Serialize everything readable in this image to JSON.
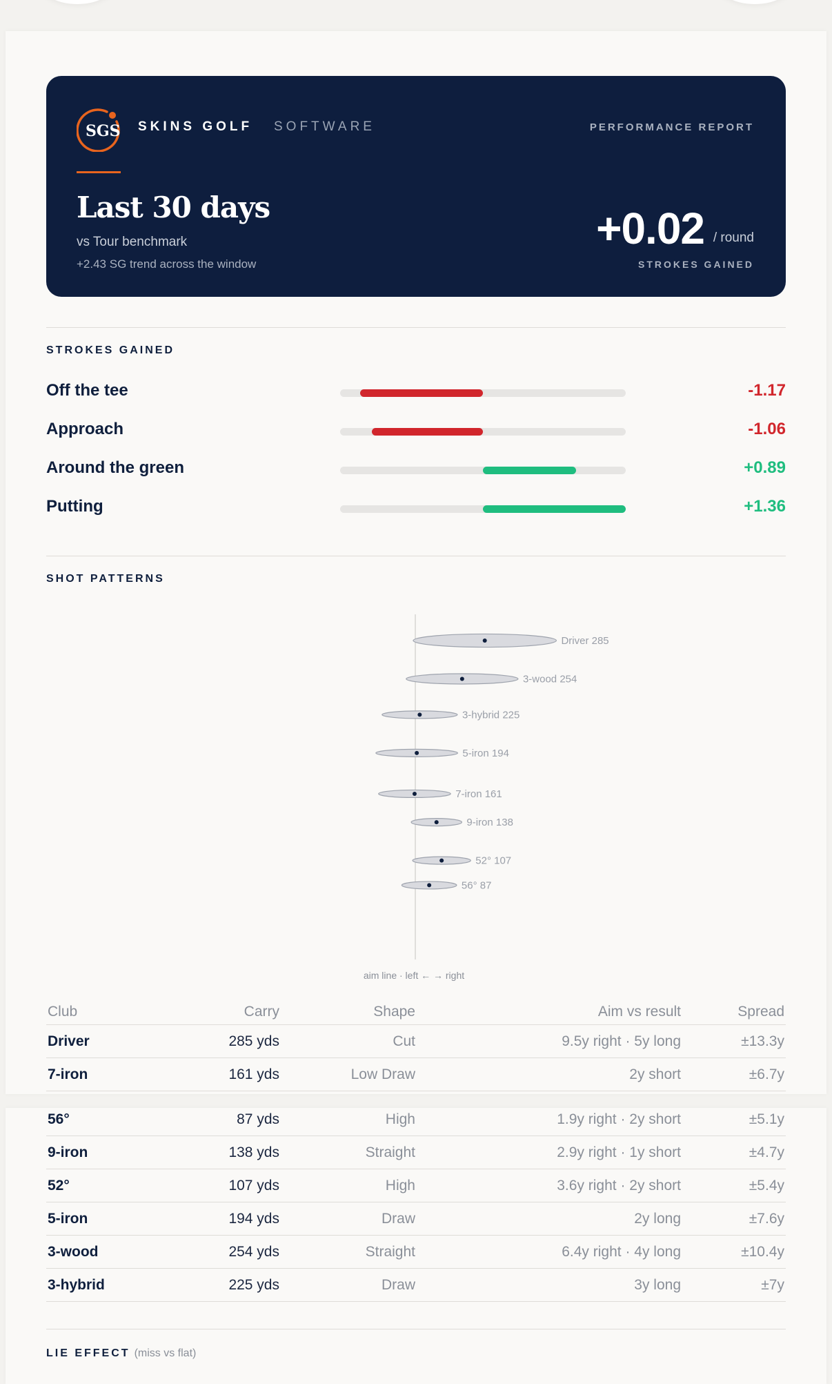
{
  "brand": {
    "logo_text": "SGS",
    "name_bold": "SKINS GOLF",
    "name_light": "SOFTWARE",
    "report_label": "PERFORMANCE REPORT"
  },
  "hero": {
    "title": "Last 30 days",
    "subtitle": "vs Tour benchmark",
    "trend": "+2.43 SG trend across the window",
    "total": "+0.02",
    "total_unit": "/ round",
    "total_label": "STROKES GAINED"
  },
  "colors": {
    "navy": "#0e1e3e",
    "accent": "#e8641e",
    "negative": "#d1262c",
    "positive": "#1fbd7f"
  },
  "strokes_gained": {
    "section_title": "STROKES GAINED",
    "scale_max": 1.36,
    "items": [
      {
        "name": "Off the tee",
        "value": -1.17,
        "display": "-1.17"
      },
      {
        "name": "Approach",
        "value": -1.06,
        "display": "-1.06"
      },
      {
        "name": "Around the green",
        "value": 0.89,
        "display": "+0.89"
      },
      {
        "name": "Putting",
        "value": 1.36,
        "display": "+1.36"
      }
    ]
  },
  "shot_patterns": {
    "section_title": "SHOT PATTERNS",
    "axis_note": "aim line · left ← → right",
    "clubs": [
      {
        "label": "Driver 285",
        "carry": 285,
        "lateral": 9.5,
        "spread": 13.3
      },
      {
        "label": "3-wood 254",
        "carry": 254,
        "lateral": 6.4,
        "spread": 10.4
      },
      {
        "label": "3-hybrid 225",
        "carry": 225,
        "lateral": 0.6,
        "spread": 7.0
      },
      {
        "label": "5-iron 194",
        "carry": 194,
        "lateral": 0.2,
        "spread": 7.6
      },
      {
        "label": "7-iron 161",
        "carry": 161,
        "lateral": -0.1,
        "spread": 6.7
      },
      {
        "label": "9-iron 138",
        "carry": 138,
        "lateral": 2.9,
        "spread": 4.7
      },
      {
        "label": "52° 107",
        "carry": 107,
        "lateral": 3.6,
        "spread": 5.4
      },
      {
        "label": "56° 87",
        "carry": 87,
        "lateral": 1.9,
        "spread": 5.1
      }
    ]
  },
  "table": {
    "headers": [
      "Club",
      "Carry",
      "Shape",
      "Aim vs result",
      "Spread"
    ],
    "rows_top": [
      [
        "Driver",
        "285 yds",
        "Cut",
        "9.5y right · 5y long",
        "±13.3y"
      ],
      [
        "7-iron",
        "161 yds",
        "Low Draw",
        "2y short",
        "±6.7y"
      ]
    ],
    "rows_bottom": [
      [
        "56°",
        "87 yds",
        "High",
        "1.9y right · 2y short",
        "±5.1y"
      ],
      [
        "9-iron",
        "138 yds",
        "Straight",
        "2.9y right · 1y short",
        "±4.7y"
      ],
      [
        "52°",
        "107 yds",
        "High",
        "3.6y right · 2y short",
        "±5.4y"
      ],
      [
        "5-iron",
        "194 yds",
        "Draw",
        "2y long",
        "±7.6y"
      ],
      [
        "3-wood",
        "254 yds",
        "Straight",
        "6.4y right · 4y long",
        "±10.4y"
      ],
      [
        "3-hybrid",
        "225 yds",
        "Draw",
        "3y long",
        "±7y"
      ]
    ]
  },
  "lie_effect": {
    "title": "LIE EFFECT",
    "note": "(miss vs flat)"
  }
}
